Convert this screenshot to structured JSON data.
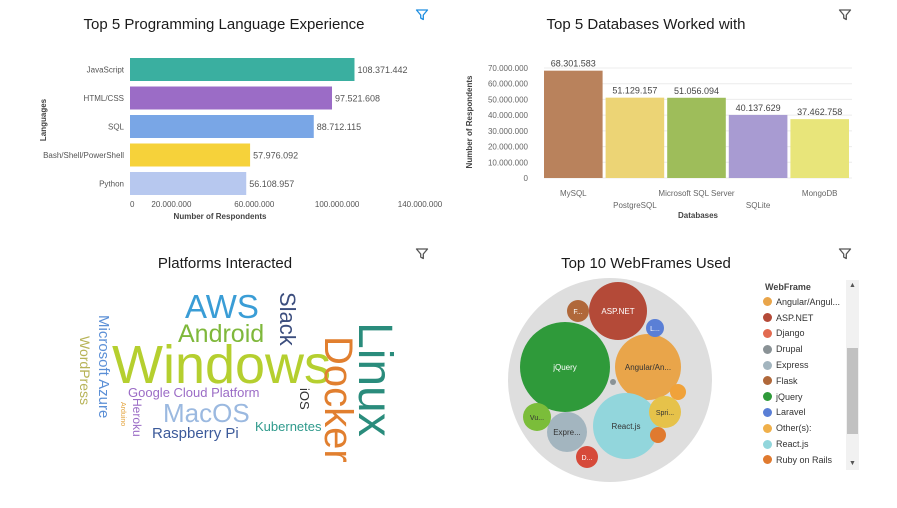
{
  "colors": {
    "filter_active": "#1f8ee0",
    "filter_idle": "#555555",
    "bubble_outer": "#dedede"
  },
  "panels": {
    "languages": {
      "title": "Top 5 Programming Language Experience"
    },
    "databases": {
      "title": "Top 5 Databases Worked with"
    },
    "platforms": {
      "title": "Platforms Interacted"
    },
    "webframes": {
      "title": "Top 10 WebFrames Used"
    }
  },
  "chart_data": [
    {
      "id": "languages",
      "type": "bar",
      "orientation": "horizontal",
      "xlabel": "Number of Respondents",
      "ylabel": "Languages",
      "xlim": [
        0,
        140000000
      ],
      "x_ticks": [
        "0",
        "20.000.000",
        "60.000.000",
        "100.000.000",
        "140.000.000"
      ],
      "categories": [
        "JavaScript",
        "HTML/CSS",
        "SQL",
        "Bash/Shell/PowerShell",
        "Python"
      ],
      "values": [
        108371442,
        97521608,
        88712115,
        57976092,
        56108957
      ],
      "value_labels": [
        "108.371.442",
        "97.521.608",
        "88.712.115",
        "57.976.092",
        "56.108.957"
      ],
      "colors": [
        "#3aafa0",
        "#9b6cc6",
        "#79a6e6",
        "#f6d23a",
        "#b7c8ef"
      ]
    },
    {
      "id": "databases",
      "type": "bar",
      "orientation": "vertical",
      "xlabel": "Databases",
      "ylabel": "Number of Respondents",
      "ylim": [
        0,
        70000000
      ],
      "y_ticks": [
        "70.000.000",
        "60.000.000",
        "50.000.000",
        "40.000.000",
        "30.000.000",
        "20.000.000",
        "10.000.000",
        "0"
      ],
      "categories": [
        "MySQL",
        "PostgreSQL",
        "Microsoft SQL Server",
        "SQLite",
        "MongoDB"
      ],
      "values": [
        68301583,
        51129157,
        51056094,
        40137629,
        37462758
      ],
      "value_labels": [
        "68.301.583",
        "51.129.157",
        "51.056.094",
        "40.137.629",
        "37.462.758"
      ],
      "colors": [
        "#b9825c",
        "#ecd475",
        "#9ebd5a",
        "#a89bd2",
        "#e8e57a"
      ]
    },
    {
      "id": "platforms",
      "type": "wordcloud",
      "words": [
        {
          "text": "Windows",
          "color": "#b5cf2f"
        },
        {
          "text": "Linux",
          "color": "#2a8c7c"
        },
        {
          "text": "Docker",
          "color": "#e17f2f"
        },
        {
          "text": "AWS",
          "color": "#3a9dd6"
        },
        {
          "text": "Android",
          "color": "#7fb83b"
        },
        {
          "text": "Slack",
          "color": "#3c4e7e"
        },
        {
          "text": "MacOS",
          "color": "#9bb9e0"
        },
        {
          "text": "Google Cloud Platform",
          "color": "#9b6cc6"
        },
        {
          "text": "Raspberry Pi",
          "color": "#3c5a9a"
        },
        {
          "text": "Kubernetes",
          "color": "#2f9a8c"
        },
        {
          "text": "Microsoft Azure",
          "color": "#5b8fd6"
        },
        {
          "text": "WordPress",
          "color": "#b7b357"
        },
        {
          "text": "Heroku",
          "color": "#9b6cc6"
        },
        {
          "text": "iOS",
          "color": "#333333"
        },
        {
          "text": "Arduino",
          "color": "#e2a23a"
        }
      ]
    },
    {
      "id": "webframes",
      "type": "bubble",
      "legend_title": "WebFrame",
      "legend": [
        {
          "label": "Angular/Angul...",
          "color": "#e9a54a"
        },
        {
          "label": "ASP.NET",
          "color": "#b44a38"
        },
        {
          "label": "Django",
          "color": "#e26a50"
        },
        {
          "label": "Drupal",
          "color": "#8a9296"
        },
        {
          "label": "Express",
          "color": "#a3b5bf"
        },
        {
          "label": "Flask",
          "color": "#b0683a"
        },
        {
          "label": "jQuery",
          "color": "#2f9a3a"
        },
        {
          "label": "Laravel",
          "color": "#5a7fd6"
        },
        {
          "label": "Other(s):",
          "color": "#f0b04a"
        },
        {
          "label": "React.js",
          "color": "#92d6dc"
        },
        {
          "label": "Ruby on Rails",
          "color": "#e07a2f"
        }
      ],
      "bubbles": [
        {
          "label": "jQuery",
          "color": "#2f9a3a"
        },
        {
          "label": "ASP.NET",
          "color": "#b44a38"
        },
        {
          "label": "Angular/An...",
          "color": "#e9a54a"
        },
        {
          "label": "React.js",
          "color": "#92d6dc"
        },
        {
          "label": "Expre...",
          "color": "#a3b5bf"
        },
        {
          "label": "Vu...",
          "color": "#7bbd3a"
        },
        {
          "label": "F...",
          "color": "#b0683a"
        },
        {
          "label": "L...",
          "color": "#5a7fd6"
        },
        {
          "label": "Spri...",
          "color": "#e6c24a"
        },
        {
          "label": "D...",
          "color": "#d64a3a"
        },
        {
          "label": "",
          "color": "#f0a23a"
        },
        {
          "label": "",
          "color": "#e07a2f"
        },
        {
          "label": "",
          "color": "#8a9296"
        }
      ]
    }
  ]
}
